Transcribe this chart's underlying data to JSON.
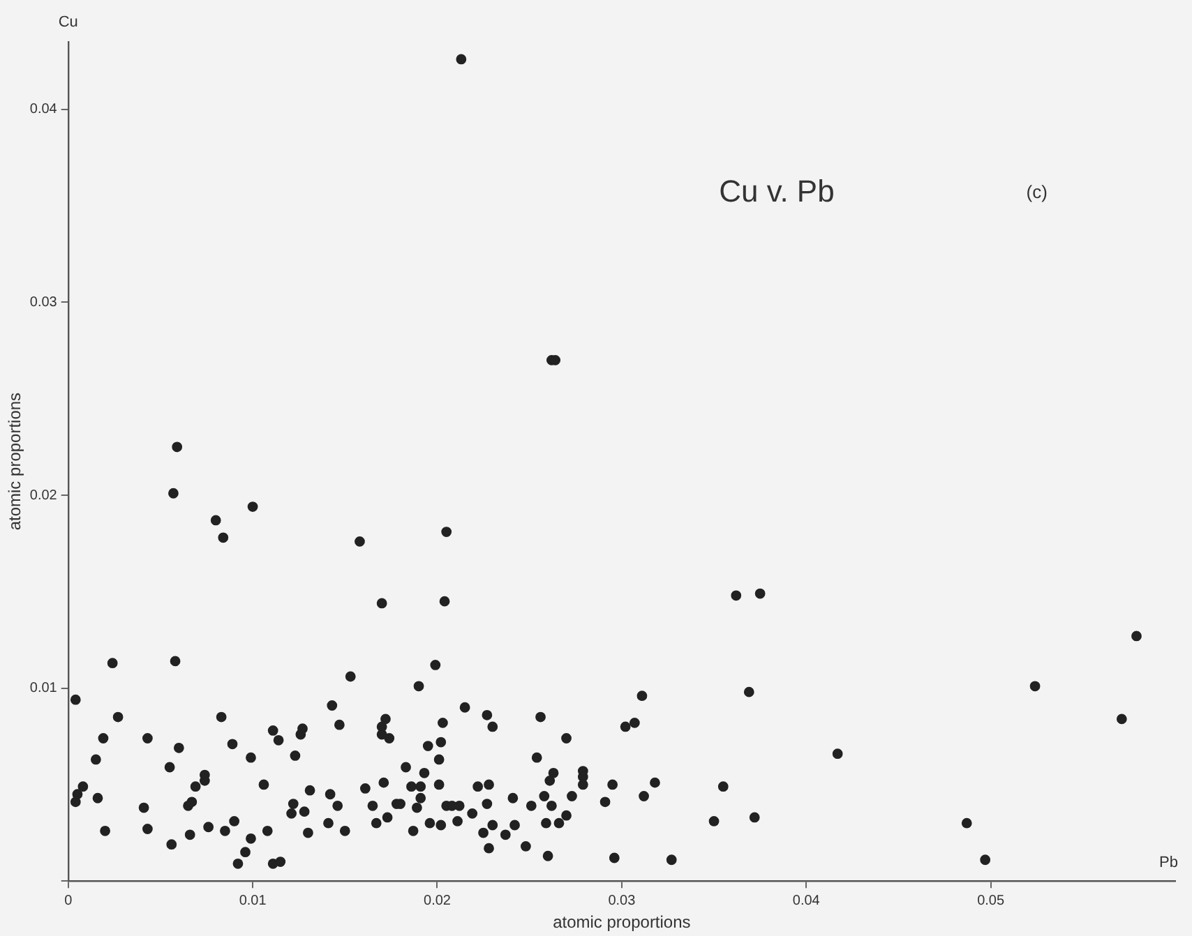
{
  "chart_data": {
    "type": "scatter",
    "title": "Cu v. Pb",
    "xlabel": "atomic proportions",
    "ylabel": "atomic proportions",
    "annotations": [
      "(c)",
      "Cu",
      "Pb"
    ],
    "xlim": [
      0,
      0.06
    ],
    "ylim": [
      0,
      0.0435
    ],
    "xticks": [
      0,
      0.01,
      0.02,
      0.03,
      0.04,
      0.05
    ],
    "yticks": [
      {
        "value": 0,
        "label": null
      },
      0.01,
      0.02,
      0.03,
      0.04
    ],
    "grid": false,
    "legend": false,
    "marker": "circle",
    "color": "#222222",
    "x": [
      0.0024,
      0.0058,
      0.0004,
      0.0027,
      0.0083,
      0.0019,
      0.0043,
      0.006,
      0.0089,
      0.0111,
      0.0114,
      0.0127,
      0.0126,
      0.0015,
      0.0055,
      0.0099,
      0.0123,
      0.0008,
      0.0005,
      0.0004,
      0.0016,
      0.0074,
      0.0074,
      0.0069,
      0.0067,
      0.0065,
      0.0041,
      0.0106,
      0.0122,
      0.0131,
      0.0128,
      0.0121,
      0.0043,
      0.002,
      0.0066,
      0.0076,
      0.0085,
      0.009,
      0.0108,
      0.013,
      0.0056,
      0.0099,
      0.0096,
      0.0092,
      0.0111,
      0.0115,
      0.017,
      0.0204,
      0.0199,
      0.0153,
      0.019,
      0.0143,
      0.0215,
      0.0227,
      0.023,
      0.0256,
      0.0147,
      0.0172,
      0.017,
      0.017,
      0.0174,
      0.0203,
      0.0202,
      0.0195,
      0.0201,
      0.027,
      0.0254,
      0.0183,
      0.0193,
      0.0263,
      0.0261,
      0.0279,
      0.0279,
      0.0279,
      0.0161,
      0.0171,
      0.0186,
      0.0191,
      0.0191,
      0.0201,
      0.0222,
      0.0228,
      0.0142,
      0.0146,
      0.0165,
      0.0178,
      0.018,
      0.0189,
      0.0205,
      0.0208,
      0.0212,
      0.0227,
      0.0241,
      0.0251,
      0.0258,
      0.0262,
      0.0273,
      0.0141,
      0.015,
      0.0167,
      0.0173,
      0.0187,
      0.0196,
      0.0202,
      0.0211,
      0.0219,
      0.0225,
      0.023,
      0.0228,
      0.0237,
      0.0242,
      0.0248,
      0.0259,
      0.0266,
      0.027,
      0.026,
      0.0362,
      0.0375,
      0.0311,
      0.0302,
      0.0307,
      0.0369,
      0.0417,
      0.0524,
      0.0579,
      0.0571,
      0.0295,
      0.0291,
      0.0318,
      0.0312,
      0.0355,
      0.035,
      0.0372,
      0.0487,
      0.0296,
      0.0327,
      0.0497,
      0.0213,
      0.0262,
      0.0264,
      0.0059,
      0.0057,
      0.01,
      0.008,
      0.0084,
      0.0158,
      0.0205
    ],
    "values": [
      0.0113,
      0.0114,
      0.0094,
      0.0085,
      0.0085,
      0.0074,
      0.0074,
      0.0069,
      0.0071,
      0.0078,
      0.0073,
      0.0079,
      0.0076,
      0.0063,
      0.0059,
      0.0064,
      0.0065,
      0.0049,
      0.0045,
      0.0041,
      0.0043,
      0.0055,
      0.0052,
      0.0049,
      0.0041,
      0.0039,
      0.0038,
      0.005,
      0.004,
      0.0047,
      0.0036,
      0.0035,
      0.0027,
      0.0026,
      0.0024,
      0.0028,
      0.0026,
      0.0031,
      0.0026,
      0.0025,
      0.0019,
      0.0022,
      0.0015,
      0.0009,
      0.0009,
      0.001,
      0.0144,
      0.0145,
      0.0112,
      0.0106,
      0.0101,
      0.0091,
      0.009,
      0.0086,
      0.008,
      0.0085,
      0.0081,
      0.0084,
      0.008,
      0.0076,
      0.0074,
      0.0082,
      0.0072,
      0.007,
      0.0063,
      0.0074,
      0.0064,
      0.0059,
      0.0056,
      0.0056,
      0.0052,
      0.0057,
      0.0054,
      0.005,
      0.0048,
      0.0051,
      0.0049,
      0.0049,
      0.0043,
      0.005,
      0.0049,
      0.005,
      0.0045,
      0.0039,
      0.0039,
      0.004,
      0.004,
      0.0038,
      0.0039,
      0.0039,
      0.0039,
      0.004,
      0.0043,
      0.0039,
      0.0044,
      0.0039,
      0.0044,
      0.003,
      0.0026,
      0.003,
      0.0033,
      0.0026,
      0.003,
      0.0029,
      0.0031,
      0.0035,
      0.0025,
      0.0029,
      0.0017,
      0.0024,
      0.0029,
      0.0018,
      0.003,
      0.003,
      0.0034,
      0.0013,
      0.0148,
      0.0149,
      0.0096,
      0.008,
      0.0082,
      0.0098,
      0.0066,
      0.0101,
      0.0127,
      0.0084,
      0.005,
      0.0041,
      0.0051,
      0.0044,
      0.0049,
      0.0031,
      0.0033,
      0.003,
      0.0012,
      0.0011,
      0.0011,
      0.0426,
      0.027,
      0.027,
      0.0225,
      0.0201,
      0.0194,
      0.0187,
      0.0178,
      0.0176,
      0.0181
    ]
  }
}
